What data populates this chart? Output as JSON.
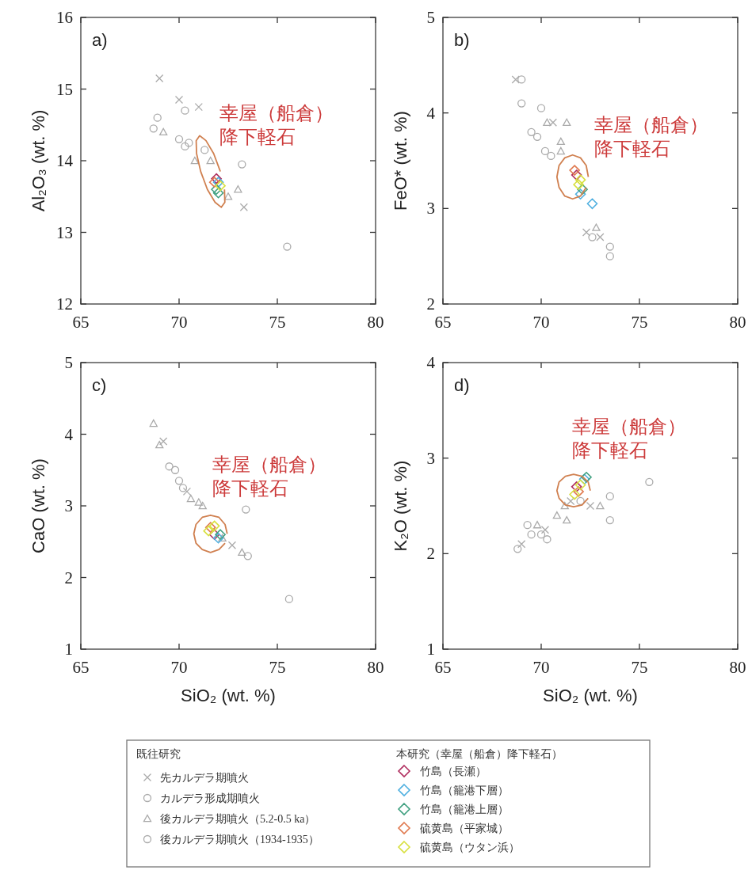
{
  "chart_data": [
    {
      "type": "scatter",
      "ylabel": "Al₂O₃ (wt. %)",
      "xlim": [
        65,
        80
      ],
      "xticks": [
        65,
        70,
        75,
        80
      ],
      "ylim": [
        12,
        16
      ],
      "yticks": [
        12,
        13,
        14,
        15,
        16
      ],
      "grid": false,
      "legend": "bottom",
      "legend_title": "既往研究",
      "annotations": [
        "a)",
        "幸屋（船倉）降下軽石",
        "本研究（幸屋（船倉）降下軽石）"
      ],
      "series": [
        {
          "name": "先カルデラ期噴火",
          "color": "#aaaaaa",
          "marker": "cross",
          "x": [
            69.0,
            70.0,
            71.0,
            73.3
          ],
          "values": [
            15.15,
            14.85,
            14.75,
            13.35
          ]
        },
        {
          "name": "カルデラ形成期噴火",
          "color": "#aaaaaa",
          "marker": "circle",
          "x": [
            68.9,
            70.3,
            70.5,
            71.3
          ],
          "values": [
            14.6,
            14.2,
            14.25,
            14.15
          ]
        },
        {
          "name": "後カルデラ期噴火（5.2-0.5 ka）",
          "color": "#aaaaaa",
          "marker": "triangle",
          "x": [
            69.2,
            70.8,
            71.6,
            72.5,
            73.0
          ],
          "values": [
            14.4,
            14.0,
            14.0,
            13.5,
            13.6
          ]
        },
        {
          "name": "後カルデラ期噴火（1934-1935）",
          "color": "#aaaaaa",
          "marker": "circle",
          "x": [
            68.7,
            70.0,
            70.3,
            73.2,
            75.5
          ],
          "values": [
            14.45,
            14.3,
            14.7,
            13.95,
            12.8
          ]
        },
        {
          "name": "竹島（長瀬）",
          "color": "#b03060",
          "marker": "diamond",
          "x": [
            71.9
          ],
          "values": [
            13.75
          ]
        },
        {
          "name": "竹島（籠港下層）",
          "color": "#50b0e0",
          "marker": "diamond",
          "x": [
            72.0
          ],
          "values": [
            13.7
          ]
        },
        {
          "name": "竹島（籠港上層）",
          "color": "#40a080",
          "marker": "diamond",
          "x": [
            71.9,
            72.0
          ],
          "values": [
            13.6,
            13.55
          ]
        },
        {
          "name": "硫黄島（平家城）",
          "color": "#e07a50",
          "marker": "diamond",
          "x": [
            71.8
          ],
          "values": [
            13.7
          ]
        },
        {
          "name": "硫黄島（ウタン浜）",
          "color": "#d8e040",
          "marker": "diamond",
          "x": [
            72.1
          ],
          "values": [
            13.65
          ]
        },
        {
          "type": "line",
          "color": "#d08050",
          "x": [
            72.1,
            71.76,
            71.37,
            71.05,
            70.87,
            70.89,
            71.1,
            71.44,
            71.83,
            72.15,
            72.33,
            72.31
          ],
          "values": [
            13.85,
            14.1,
            14.28,
            14.35,
            14.28,
            14.1,
            13.85,
            13.6,
            13.42,
            13.35,
            13.42,
            13.6
          ]
        }
      ]
    },
    {
      "type": "scatter",
      "ylabel": "FeO* (wt. %)",
      "xlim": [
        65,
        80
      ],
      "xticks": [
        65,
        70,
        75,
        80
      ],
      "ylim": [
        2,
        5
      ],
      "yticks": [
        2,
        3,
        4,
        5
      ],
      "grid": false,
      "annotations": [
        "b)",
        "幸屋（船倉）降下軽石"
      ],
      "series": [
        {
          "color": "#aaaaaa",
          "marker": "cross",
          "x": [
            68.7,
            70.6,
            72.3,
            73.0
          ],
          "values": [
            4.35,
            3.9,
            2.75,
            2.7
          ]
        },
        {
          "color": "#aaaaaa",
          "marker": "circle",
          "x": [
            69.5,
            69.8,
            70.2,
            70.5
          ],
          "values": [
            3.8,
            3.75,
            3.6,
            3.55
          ]
        },
        {
          "color": "#aaaaaa",
          "marker": "triangle",
          "x": [
            70.3,
            71.0,
            71.3,
            71.0,
            72.8
          ],
          "values": [
            3.9,
            3.7,
            3.9,
            3.6,
            2.8
          ]
        },
        {
          "color": "#aaaaaa",
          "marker": "circle",
          "x": [
            69.0,
            69.0,
            70.0,
            72.6,
            73.5,
            73.5
          ],
          "values": [
            4.35,
            4.1,
            4.05,
            2.7,
            2.6,
            2.5
          ]
        },
        {
          "color": "#b03060",
          "marker": "diamond",
          "x": [
            71.8
          ],
          "values": [
            3.35
          ]
        },
        {
          "color": "#50b0e0",
          "marker": "diamond",
          "x": [
            72.0,
            72.6
          ],
          "values": [
            3.15,
            3.05
          ]
        },
        {
          "color": "#40a080",
          "marker": "diamond",
          "x": [
            72.1
          ],
          "values": [
            3.2
          ]
        },
        {
          "color": "#e07a50",
          "marker": "diamond",
          "x": [
            71.7
          ],
          "values": [
            3.4
          ]
        },
        {
          "color": "#d8e040",
          "marker": "diamond",
          "x": [
            71.9,
            72.0
          ],
          "values": [
            3.25,
            3.3
          ]
        },
        {
          "type": "line",
          "color": "#d08050",
          "x": [
            72.4,
            72.29,
            72.0,
            71.6,
            71.2,
            70.91,
            70.8,
            70.91,
            71.2,
            71.6,
            72.0,
            72.29
          ],
          "values": [
            3.33,
            3.45,
            3.53,
            3.56,
            3.53,
            3.45,
            3.33,
            3.22,
            3.13,
            3.1,
            3.13,
            3.22
          ]
        }
      ]
    },
    {
      "type": "scatter",
      "xlabel": "SiO₂ (wt. %)",
      "ylabel": "CaO (wt. %)",
      "xlim": [
        65,
        80
      ],
      "xticks": [
        65,
        70,
        75,
        80
      ],
      "ylim": [
        1,
        5
      ],
      "yticks": [
        1,
        2,
        3,
        4,
        5
      ],
      "grid": false,
      "annotations": [
        "c)",
        "幸屋（船倉）降下軽石"
      ],
      "series": [
        {
          "color": "#aaaaaa",
          "marker": "cross",
          "x": [
            69.2,
            70.4,
            72.7
          ],
          "values": [
            3.9,
            3.2,
            2.45
          ]
        },
        {
          "color": "#aaaaaa",
          "marker": "circle",
          "x": [
            69.5,
            70.0,
            70.2
          ],
          "values": [
            3.55,
            3.35,
            3.25
          ]
        },
        {
          "color": "#aaaaaa",
          "marker": "triangle",
          "x": [
            68.7,
            69.0,
            70.6,
            71.0,
            71.2,
            72.2,
            73.2
          ],
          "values": [
            4.15,
            3.85,
            3.1,
            3.05,
            3.0,
            2.55,
            2.35
          ]
        },
        {
          "color": "#aaaaaa",
          "marker": "circle",
          "x": [
            69.8,
            73.4,
            73.5,
            75.6
          ],
          "values": [
            3.5,
            2.95,
            2.3,
            1.7
          ]
        },
        {
          "color": "#b03060",
          "marker": "diamond",
          "x": [
            71.8
          ],
          "values": [
            2.6
          ]
        },
        {
          "color": "#50b0e0",
          "marker": "diamond",
          "x": [
            72.0
          ],
          "values": [
            2.55
          ]
        },
        {
          "color": "#40a080",
          "marker": "diamond",
          "x": [
            72.1
          ],
          "values": [
            2.6
          ]
        },
        {
          "color": "#e07a50",
          "marker": "diamond",
          "x": [
            71.6
          ],
          "values": [
            2.7
          ]
        },
        {
          "color": "#d8e040",
          "marker": "diamond",
          "x": [
            71.5,
            71.8
          ],
          "values": [
            2.65,
            2.72
          ]
        },
        {
          "type": "line",
          "color": "#d08050",
          "x": [
            72.45,
            72.34,
            72.03,
            71.6,
            71.18,
            70.86,
            70.75,
            70.86,
            71.18,
            71.6,
            72.03,
            72.34
          ],
          "values": [
            2.61,
            2.74,
            2.84,
            2.87,
            2.84,
            2.74,
            2.61,
            2.48,
            2.39,
            2.35,
            2.39,
            2.48
          ]
        }
      ]
    },
    {
      "type": "scatter",
      "xlabel": "SiO₂ (wt. %)",
      "ylabel": "K₂O (wt. %)",
      "xlim": [
        65,
        80
      ],
      "xticks": [
        65,
        70,
        75,
        80
      ],
      "ylim": [
        1,
        4
      ],
      "yticks": [
        1,
        2,
        3,
        4
      ],
      "grid": false,
      "annotations": [
        "d)",
        "幸屋（船倉）降下軽石"
      ],
      "series": [
        {
          "color": "#aaaaaa",
          "marker": "cross",
          "x": [
            69.0,
            70.2,
            71.5,
            72.5
          ],
          "values": [
            2.1,
            2.25,
            2.55,
            2.5
          ]
        },
        {
          "color": "#aaaaaa",
          "marker": "circle",
          "x": [
            69.5,
            70.0,
            70.3
          ],
          "values": [
            2.2,
            2.2,
            2.15
          ]
        },
        {
          "color": "#aaaaaa",
          "marker": "triangle",
          "x": [
            69.8,
            70.8,
            71.2,
            71.3,
            73.0
          ],
          "values": [
            2.3,
            2.4,
            2.5,
            2.35,
            2.5
          ]
        },
        {
          "color": "#aaaaaa",
          "marker": "circle",
          "x": [
            68.8,
            69.3,
            72.0,
            73.5,
            73.5,
            75.5
          ],
          "values": [
            2.05,
            2.3,
            2.55,
            2.6,
            2.35,
            2.75
          ]
        },
        {
          "color": "#b03060",
          "marker": "diamond",
          "x": [
            71.8
          ],
          "values": [
            2.7
          ]
        },
        {
          "color": "#50b0e0",
          "marker": "diamond",
          "x": [
            72.2
          ],
          "values": [
            2.78
          ]
        },
        {
          "color": "#40a080",
          "marker": "diamond",
          "x": [
            72.3
          ],
          "values": [
            2.8
          ]
        },
        {
          "color": "#e07a50",
          "marker": "diamond",
          "x": [
            71.9
          ],
          "values": [
            2.65
          ]
        },
        {
          "color": "#d8e040",
          "marker": "diamond",
          "x": [
            71.7,
            72.0
          ],
          "values": [
            2.62,
            2.72
          ]
        },
        {
          "type": "line",
          "color": "#d08050",
          "x": [
            72.5,
            72.39,
            72.08,
            71.65,
            71.23,
            70.91,
            70.8,
            70.91,
            71.23,
            71.65,
            72.08,
            72.39
          ],
          "values": [
            2.66,
            2.75,
            2.81,
            2.83,
            2.81,
            2.75,
            2.66,
            2.58,
            2.51,
            2.49,
            2.51,
            2.58
          ]
        }
      ]
    }
  ]
}
